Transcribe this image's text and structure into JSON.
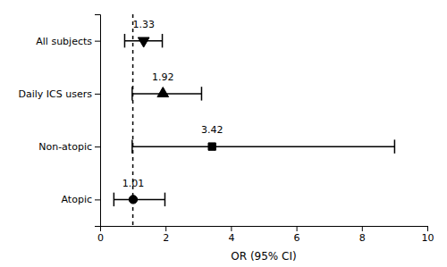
{
  "chart_data": {
    "type": "forest",
    "orientation": "horizontal",
    "categories": [
      "All subjects",
      "Daily ICS users",
      "Non-atopic",
      "Atopic"
    ],
    "values": [
      1.33,
      1.92,
      3.42,
      1.01
    ],
    "ci_lower": [
      0.75,
      0.98,
      0.98,
      0.42
    ],
    "ci_upper": [
      1.9,
      3.1,
      9.0,
      1.98
    ],
    "markers": [
      "triangle-down",
      "triangle-up",
      "square",
      "circle"
    ],
    "color": "#000000",
    "reference_line": 1.0,
    "xlabel": "OR (95% CI)",
    "xlim": [
      0,
      10
    ],
    "xticks": [
      0,
      2,
      4,
      6,
      8,
      10
    ],
    "data_labels": true,
    "grid": false
  }
}
